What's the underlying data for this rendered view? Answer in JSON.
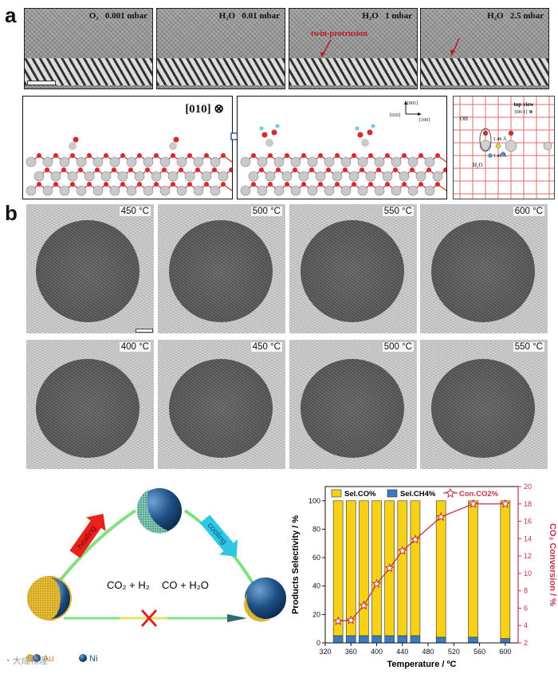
{
  "panels": {
    "a_letter": "a",
    "b_letter": "b"
  },
  "panel_a": {
    "tem_images": [
      {
        "gas": "O₂",
        "pressure": "0.001 mbar"
      },
      {
        "gas": "H₂O",
        "pressure": "0.01 mbar"
      },
      {
        "gas": "H₂O",
        "pressure": "1 mbar"
      },
      {
        "gas": "H₂O",
        "pressure": "2.5 mbar"
      }
    ],
    "twin_label": "twin-protrusion",
    "model_direction": "[010] ⊗",
    "axes": {
      "up": "[001]",
      "left": "[010]",
      "right": "[100]"
    },
    "topview": {
      "title": "top view",
      "direction": "[00-1] ⊗",
      "oh_label": "OH",
      "h2o_label": "H₂O",
      "d1": "1.46 Å",
      "d2": "1.46 Å"
    }
  },
  "panel_b": {
    "row1_temps": [
      "450 °C",
      "500 °C",
      "550 °C",
      "600 °C"
    ],
    "row2_temps": [
      "400 °C",
      "450 °C",
      "500 °C",
      "550 °C"
    ]
  },
  "scheme": {
    "left_reaction": "CO₂ + H₂",
    "right_reaction": "CO + H₂O",
    "heating_label": "heating",
    "cooling_label": "cooling",
    "legend_au": "Au",
    "legend_ni": "Ni",
    "colors": {
      "au": "#e5b52a",
      "ni": "#1e4f84",
      "arrow_green": "#7fe07d",
      "heating": "#e8231c",
      "cooling": "#2ec8e6"
    }
  },
  "watermark": "大成物理",
  "chart_data": {
    "type": "bar",
    "x": [
      340,
      360,
      380,
      400,
      420,
      440,
      460,
      500,
      550,
      600
    ],
    "series": [
      {
        "name": "Sel.CO%",
        "type": "bar",
        "values": [
          95,
          95,
          95,
          95,
          95,
          95,
          95,
          96,
          96,
          97
        ]
      },
      {
        "name": "Sel.CH4%",
        "type": "bar",
        "values": [
          5,
          5,
          5,
          5,
          5,
          5,
          5,
          4,
          4,
          3
        ]
      },
      {
        "name": "Con.CO2%",
        "type": "line",
        "axis": "right",
        "values": [
          4.5,
          4.6,
          6.3,
          8.8,
          10.6,
          12.6,
          13.9,
          16.5,
          18.0,
          18.0
        ]
      }
    ],
    "legend": [
      "Sel.CO%",
      "Sel.CH4%",
      "Con.CO2%"
    ],
    "xlabel": "Temperature / ºC",
    "ylabel_left": "Products Selectivity / %",
    "ylabel_right": "CO₂ Conversion / %",
    "xlim": [
      320,
      620
    ],
    "ylim_left": [
      0,
      110
    ],
    "ylim_right": [
      2,
      20
    ],
    "xticks": [
      320,
      360,
      400,
      440,
      480,
      520,
      560,
      600
    ],
    "yticks_left": [
      0,
      20,
      40,
      60,
      80,
      100
    ],
    "yticks_right": [
      2,
      4,
      6,
      8,
      10,
      12,
      14,
      16,
      18,
      20
    ],
    "colors": {
      "co": "#f7d117",
      "ch4": "#3b7bbf",
      "conv": "#c2314a"
    }
  }
}
